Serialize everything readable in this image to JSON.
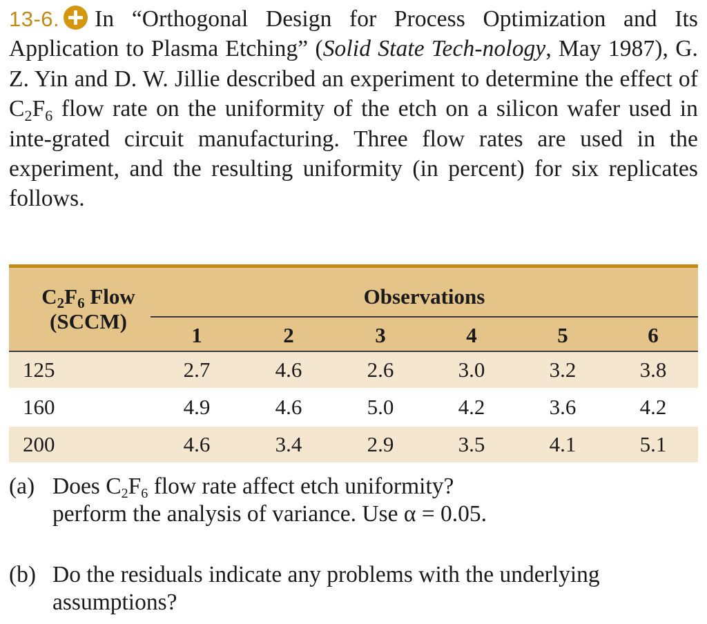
{
  "problem": {
    "number": "13-6.",
    "icon": "plus-circle-icon",
    "accent_color": "#c48a16",
    "text_intro": "In “Orthogonal Design for Process Optimization and Its Application to Plasma Etching” (",
    "source_italic": "Solid State Tech-nology",
    "text_mid": ", May 1987), G. Z. Yin and D. W. Jillie described an experiment to determine the effect of C",
    "sub_2": "2",
    "f_letter": "F",
    "sub_6": "6",
    "text_end": " flow rate on the uniformity of the etch on a silicon wafer used in inte-grated circuit manufacturing. Three flow rates are used in the experiment, and the resulting uniformity (in percent) for six replicates follows."
  },
  "table": {
    "row_header_c": "C",
    "row_header_sub2": "2",
    "row_header_f": "F",
    "row_header_sub6": "6",
    "row_header_flow": " Flow",
    "row_header_unit": "(SCCM)",
    "group_header": "Observations",
    "columns": [
      "1",
      "2",
      "3",
      "4",
      "5",
      "6"
    ],
    "rows": [
      {
        "flow": "125",
        "values": [
          "2.7",
          "4.6",
          "2.6",
          "3.0",
          "3.2",
          "3.8"
        ]
      },
      {
        "flow": "160",
        "values": [
          "4.9",
          "4.6",
          "5.0",
          "4.2",
          "3.6",
          "4.2"
        ]
      },
      {
        "flow": "200",
        "values": [
          "4.6",
          "3.4",
          "2.9",
          "3.5",
          "4.1",
          "5.1"
        ]
      }
    ]
  },
  "questions": {
    "a_tag": "(a)",
    "a_line1_pre": "Does C",
    "a_sub2": "2",
    "a_f": "F",
    "a_sub6": "6",
    "a_line1_post": " flow rate affect etch uniformity?",
    "a_line2": "perform the analysis of variance. Use α = 0.05.",
    "b_tag": "(b)",
    "b_text": "Do the residuals indicate any problems with the underlying assumptions?"
  }
}
